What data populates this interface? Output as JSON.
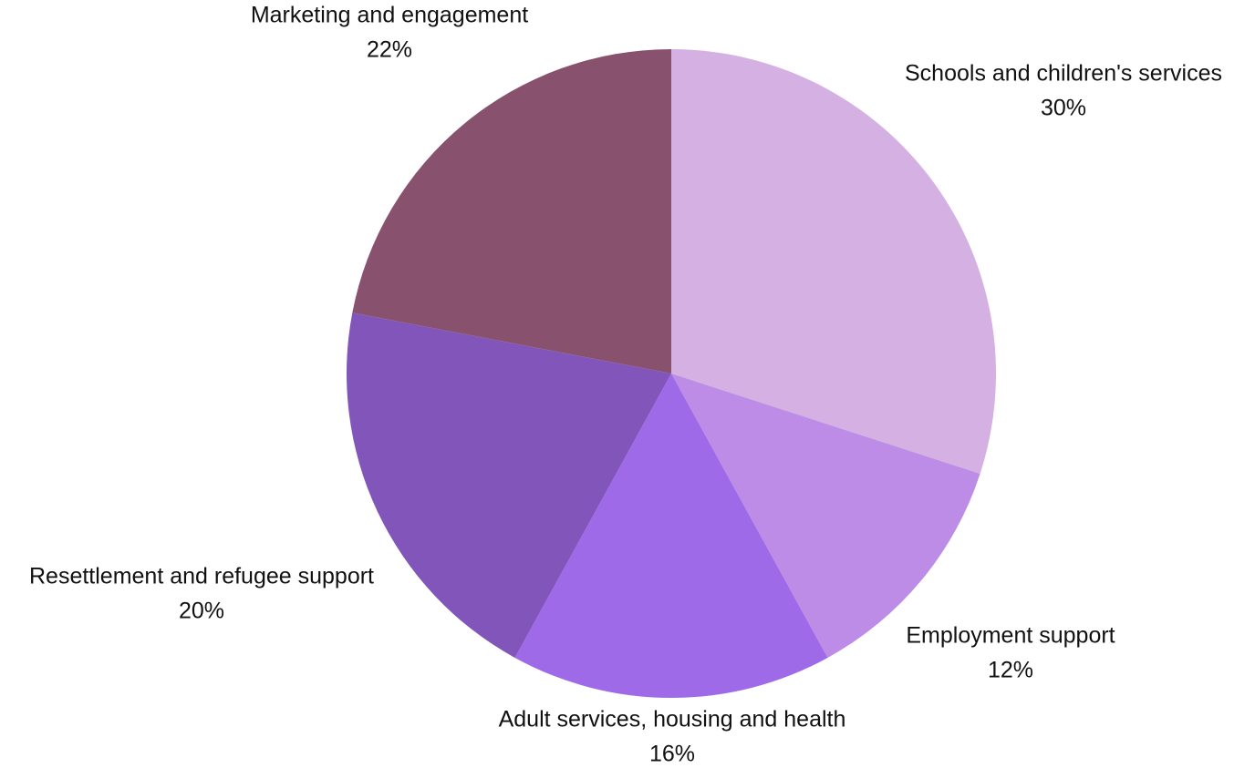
{
  "chart_data": {
    "type": "pie",
    "start_angle_deg": 0,
    "direction": "clockwise",
    "slices": [
      {
        "label": "Schools and children's services",
        "value": 30,
        "value_text": "30%",
        "color": "#d4b0e3"
      },
      {
        "label": "Employment support",
        "value": 12,
        "value_text": "12%",
        "color": "#bd8ce6"
      },
      {
        "label": "Adult services, housing and health",
        "value": 16,
        "value_text": "16%",
        "color": "#9f6ae8"
      },
      {
        "label": "Resettlement and refugee support",
        "value": 20,
        "value_text": "20%",
        "color": "#8155b9"
      },
      {
        "label": "Marketing and engagement",
        "value": 22,
        "value_text": "22%",
        "color": "#88526f"
      }
    ]
  }
}
